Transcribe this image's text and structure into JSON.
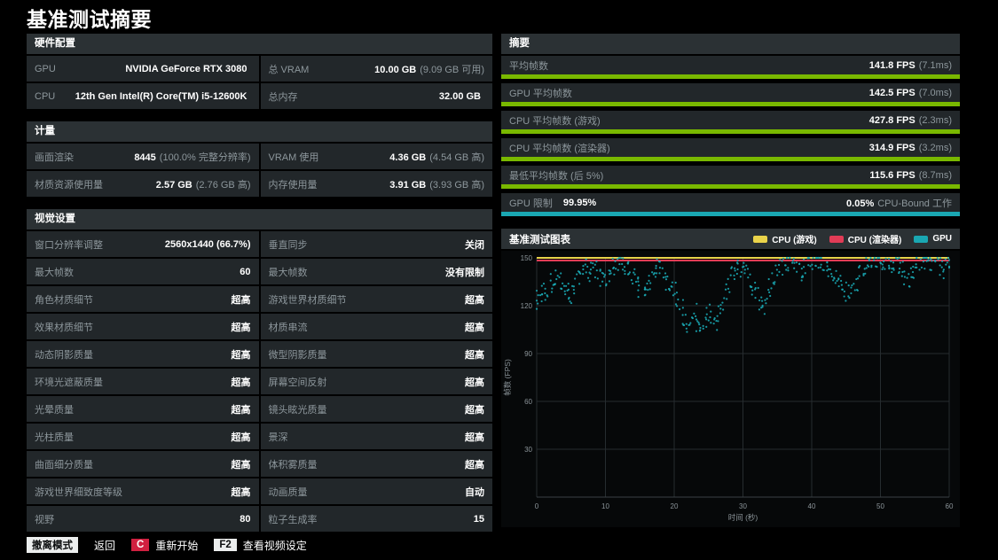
{
  "title": "基准测试摘要",
  "colors": {
    "green": "#79b800",
    "teal": "#1aa7b2",
    "yellow": "#ead34a",
    "red": "#e23c56"
  },
  "hardware": {
    "title": "硬件配置",
    "rows": [
      {
        "left": {
          "label": "GPU",
          "value": "NVIDIA GeForce RTX 3080",
          "note": ""
        },
        "right": {
          "label": "总 VRAM",
          "value": "10.00 GB",
          "note": "(9.09 GB 可用)"
        }
      },
      {
        "left": {
          "label": "CPU",
          "value": "12th Gen Intel(R) Core(TM) i5-12600K",
          "note": ""
        },
        "right": {
          "label": "总内存",
          "value": "32.00 GB",
          "note": ""
        }
      }
    ]
  },
  "metrics": {
    "title": "计量",
    "rows": [
      {
        "left": {
          "label": "画面渲染",
          "value": "8445",
          "note": "(100.0% 完整分辨率)"
        },
        "right": {
          "label": "VRAM 使用",
          "value": "4.36 GB",
          "note": "(4.54 GB 高)"
        }
      },
      {
        "left": {
          "label": "材质资源使用量",
          "value": "2.57 GB",
          "note": "(2.76 GB 高)"
        },
        "right": {
          "label": "内存使用量",
          "value": "3.91 GB",
          "note": "(3.93 GB 高)"
        }
      }
    ]
  },
  "visual": {
    "title": "视觉设置",
    "rows": [
      {
        "left": {
          "label": "窗口分辨率调整",
          "value": "2560x1440 (66.7%)"
        },
        "right": {
          "label": "垂直同步",
          "value": "关闭"
        }
      },
      {
        "left": {
          "label": "最大帧数",
          "value": "60"
        },
        "right": {
          "label": "最大帧数",
          "value": "没有限制"
        }
      },
      {
        "left": {
          "label": "角色材质细节",
          "value": "超高"
        },
        "right": {
          "label": "游戏世界材质细节",
          "value": "超高"
        }
      },
      {
        "left": {
          "label": "效果材质细节",
          "value": "超高"
        },
        "right": {
          "label": "材质串流",
          "value": "超高"
        }
      },
      {
        "left": {
          "label": "动态阴影质量",
          "value": "超高"
        },
        "right": {
          "label": "微型阴影质量",
          "value": "超高"
        }
      },
      {
        "left": {
          "label": "环境光遮蔽质量",
          "value": "超高"
        },
        "right": {
          "label": "屏幕空间反射",
          "value": "超高"
        }
      },
      {
        "left": {
          "label": "光晕质量",
          "value": "超高"
        },
        "right": {
          "label": "镜头眩光质量",
          "value": "超高"
        }
      },
      {
        "left": {
          "label": "光柱质量",
          "value": "超高"
        },
        "right": {
          "label": "景深",
          "value": "超高"
        }
      },
      {
        "left": {
          "label": "曲面细分质量",
          "value": "超高"
        },
        "right": {
          "label": "体积雾质量",
          "value": "超高"
        }
      },
      {
        "left": {
          "label": "游戏世界细致度等级",
          "value": "超高"
        },
        "right": {
          "label": "动画质量",
          "value": "自动"
        }
      },
      {
        "left": {
          "label": "视野",
          "value": "80"
        },
        "right": {
          "label": "粒子生成率",
          "value": "15"
        }
      }
    ]
  },
  "summary": {
    "title": "摘要",
    "items": [
      {
        "label": "平均帧数",
        "value": "141.8 FPS",
        "note": "(7.1ms)",
        "bar": "green",
        "bar_fill": 1
      },
      {
        "label": "GPU 平均帧数",
        "value": "142.5 FPS",
        "note": "(7.0ms)",
        "bar": "green",
        "bar_fill": 1
      },
      {
        "label": "CPU 平均帧数 (游戏)",
        "value": "427.8 FPS",
        "note": "(2.3ms)",
        "bar": "green",
        "bar_fill": 1
      },
      {
        "label": "CPU 平均帧数 (渲染器)",
        "value": "314.9 FPS",
        "note": "(3.2ms)",
        "bar": "green",
        "bar_fill": 1
      },
      {
        "label": "最低平均帧数 (后 5%)",
        "value": "115.6 FPS",
        "note": "(8.7ms)",
        "bar": "green",
        "bar_fill": 1
      }
    ],
    "gpu_limit": {
      "label": "GPU 限制",
      "value": "99.95%",
      "right_value": "0.05%",
      "right_label": "CPU-Bound 工作",
      "bar": "teal",
      "bar_fill": 1
    }
  },
  "chart": {
    "title": "基准测试图表",
    "legend": [
      {
        "label": "CPU (游戏)",
        "color_key": "yellow"
      },
      {
        "label": "CPU (渲染器)",
        "color_key": "red"
      },
      {
        "label": "GPU",
        "color_key": "teal"
      }
    ]
  },
  "chart_data": {
    "type": "scatter",
    "title": "基准测试图表",
    "xlabel": "时间 (秒)",
    "ylabel": "帧数 (FPS)",
    "xlim": [
      0,
      60
    ],
    "ylim": [
      0,
      150
    ],
    "x_ticks": [
      0,
      10,
      20,
      30,
      40,
      50,
      60
    ],
    "y_ticks": [
      30,
      60,
      90,
      120,
      150
    ],
    "grid": true,
    "legend_position": "top-right",
    "x_start": 0,
    "x_step": 0.5,
    "series": [
      {
        "name": "CPU (游戏)",
        "color": "yellow",
        "type": "line",
        "avg_fps": 427.8,
        "clipped_at": 150
      },
      {
        "name": "CPU (渲染器)",
        "color": "red",
        "type": "line",
        "avg_fps": 314.9,
        "clipped_at": 150
      },
      {
        "name": "GPU",
        "color": "teal",
        "type": "scatter",
        "avg_fps": 142.5,
        "values": [
          124,
          128,
          131,
          127,
          134,
          138,
          140,
          136,
          132,
          129,
          127,
          133,
          138,
          142,
          145,
          141,
          146,
          143,
          139,
          136,
          134,
          139,
          144,
          147,
          148,
          144,
          141,
          143,
          139,
          135,
          131,
          128,
          130,
          136,
          141,
          144,
          142,
          138,
          135,
          133,
          130,
          124,
          118,
          112,
          108,
          113,
          117,
          110,
          105,
          109,
          115,
          111,
          108,
          114,
          121,
          128,
          134,
          139,
          142,
          144,
          145,
          141,
          137,
          132,
          127,
          122,
          119,
          124,
          131,
          137,
          141,
          144,
          146,
          148,
          149,
          146,
          143,
          141,
          144,
          147,
          148,
          150,
          149,
          147,
          144,
          141,
          139,
          137,
          134,
          131,
          129,
          127,
          131,
          135,
          139,
          142,
          145,
          147,
          149,
          150,
          148,
          146,
          144,
          146,
          148,
          145,
          142,
          139,
          137,
          140,
          143,
          146,
          148,
          149,
          150,
          148,
          146,
          144,
          143,
          144,
          145
        ]
      }
    ]
  },
  "footer": {
    "mode_badge": "撤离模式",
    "back": "返回",
    "restart_key": "C",
    "restart": "重新开始",
    "video_key": "F2",
    "video": "查看视频设定"
  }
}
